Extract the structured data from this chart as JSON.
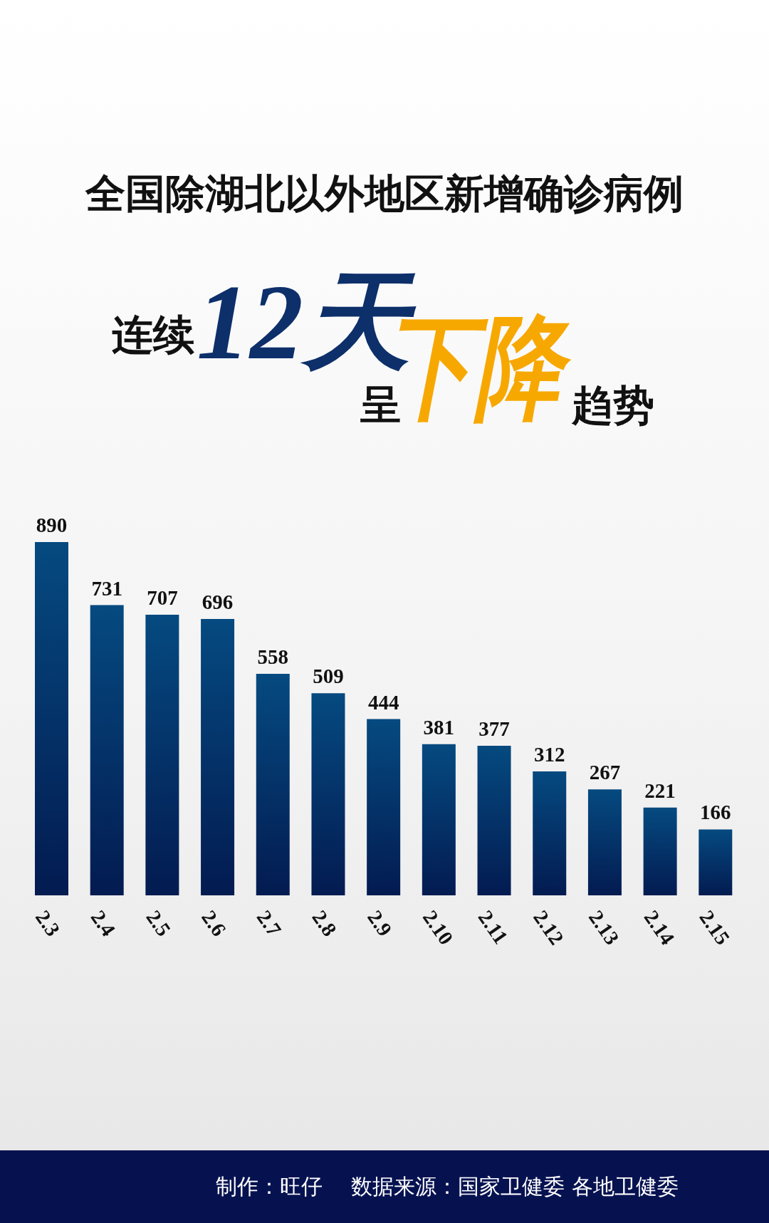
{
  "chart_data": {
    "type": "bar",
    "title": "全国除湖北以外地区新增确诊病例",
    "subtitle": "连续12天呈下降趋势",
    "categories": [
      "2.3",
      "2.4",
      "2.5",
      "2.6",
      "2.7",
      "2.8",
      "2.9",
      "2.10",
      "2.11",
      "2.12",
      "2.13",
      "2.14",
      "2.15"
    ],
    "values": [
      890,
      731,
      707,
      696,
      558,
      509,
      444,
      381,
      377,
      312,
      267,
      221,
      166
    ],
    "color": "#054a80",
    "data_labels": true,
    "tick_labels": "x",
    "annotations": [
      "制作：旺仔",
      "数据来源：国家卫健委 各地卫健委"
    ]
  }
}
